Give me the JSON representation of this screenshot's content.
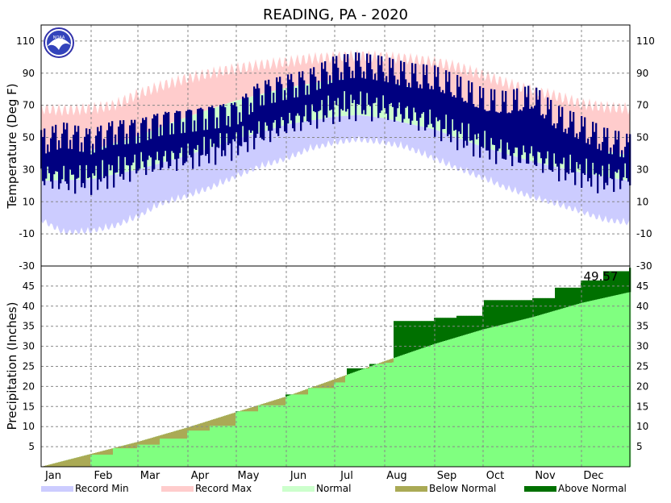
{
  "chart_data": [
    {
      "type": "area",
      "panel": "temperature",
      "title": "READING, PA - 2020",
      "ylabel": "Temperature (Deg F)",
      "ylim": [
        -30,
        120
      ],
      "yticks": [
        -10,
        10,
        30,
        50,
        70,
        90,
        110
      ],
      "grid": true,
      "logo": "noaa-logo",
      "series": [
        {
          "name": "Record Max",
          "color": "#ffcccc",
          "x": [
            1,
            15,
            32,
            46,
            61,
            75,
            92,
            106,
            122,
            136,
            153,
            167,
            183,
            197,
            214,
            228,
            245,
            259,
            275,
            289,
            306,
            320,
            336,
            350,
            366
          ],
          "values": [
            68,
            67,
            68,
            70,
            77,
            82,
            87,
            90,
            93,
            95,
            97,
            99,
            100,
            101,
            100,
            99,
            97,
            94,
            89,
            84,
            79,
            76,
            71,
            69,
            68
          ]
        },
        {
          "name": "Record Min",
          "color": "#ccccff",
          "x": [
            1,
            15,
            32,
            46,
            61,
            75,
            92,
            106,
            122,
            136,
            153,
            167,
            183,
            197,
            214,
            228,
            245,
            259,
            275,
            289,
            306,
            320,
            336,
            350,
            366
          ],
          "values": [
            2,
            -6,
            -5,
            -2,
            4,
            12,
            17,
            22,
            29,
            35,
            40,
            46,
            50,
            52,
            50,
            47,
            40,
            34,
            28,
            22,
            16,
            12,
            7,
            2,
            0
          ]
        },
        {
          "name": "Normal",
          "color": "#ccffcc",
          "x": [
            1,
            32,
            61,
            92,
            122,
            153,
            183,
            198,
            214,
            245,
            275,
            306,
            336,
            366
          ],
          "normal_high": [
            39,
            42,
            51,
            63,
            73,
            81,
            86,
            87,
            85,
            78,
            67,
            55,
            44,
            39
          ],
          "normal_low": [
            23,
            24,
            30,
            39,
            49,
            58,
            63,
            64,
            62,
            55,
            44,
            35,
            28,
            23
          ]
        },
        {
          "name": "Observed",
          "color": "#000080",
          "x": [
            1,
            15,
            32,
            46,
            61,
            75,
            92,
            106,
            122,
            136,
            153,
            167,
            183,
            197,
            214,
            228,
            245,
            259,
            275,
            289,
            306,
            320,
            336,
            350,
            366
          ],
          "high": [
            47,
            52,
            48,
            54,
            55,
            60,
            62,
            64,
            66,
            78,
            82,
            85,
            93,
            95,
            92,
            88,
            86,
            80,
            72,
            70,
            74,
            62,
            55,
            48,
            44
          ],
          "low": [
            26,
            24,
            24,
            28,
            33,
            35,
            38,
            42,
            46,
            52,
            58,
            63,
            68,
            70,
            68,
            64,
            58,
            52,
            45,
            40,
            38,
            32,
            28,
            24,
            26
          ]
        }
      ]
    },
    {
      "type": "area",
      "panel": "precipitation",
      "ylabel": "Precipitation (Inches)",
      "ylim": [
        0,
        50
      ],
      "yticks": [
        5,
        10,
        15,
        20,
        25,
        30,
        35,
        40,
        45
      ],
      "categories": [
        "Jan",
        "Feb",
        "Mar",
        "Apr",
        "May",
        "Jun",
        "Jul",
        "Aug",
        "Sep",
        "Oct",
        "Nov",
        "Dec"
      ],
      "grid": true,
      "annotation": "49.57",
      "series": [
        {
          "name": "Normal",
          "color": "#80ff80",
          "x": [
            1,
            32,
            61,
            92,
            122,
            153,
            183,
            214,
            245,
            275,
            306,
            336,
            366
          ],
          "values": [
            0,
            3.2,
            6.2,
            9.8,
            13.6,
            17.5,
            21.8,
            26.3,
            30.6,
            34.2,
            37.3,
            40.8,
            43.5
          ]
        },
        {
          "name": "Observed",
          "x": [
            1,
            32,
            46,
            61,
            75,
            92,
            106,
            122,
            136,
            153,
            167,
            183,
            190,
            191,
            205,
            214,
            219,
            220,
            245,
            259,
            275,
            276,
            306,
            320,
            336,
            350,
            366
          ],
          "values": [
            0,
            3.0,
            4.6,
            5.5,
            7.0,
            9.0,
            10.2,
            13.8,
            15.3,
            18.0,
            19.6,
            21.0,
            22.6,
            24.5,
            25.6,
            25.9,
            26.0,
            36.3,
            37.1,
            37.6,
            40.1,
            41.5,
            42.0,
            44.6,
            46.4,
            48.7,
            49.57
          ]
        },
        {
          "name": "Below Normal",
          "color": "#aaaa55"
        },
        {
          "name": "Above Normal",
          "color": "#007000"
        }
      ]
    }
  ],
  "legend": [
    {
      "label": "Record Min",
      "color": "#ccccff"
    },
    {
      "label": "Record Max",
      "color": "#ffcccc"
    },
    {
      "label": "Normal",
      "color": "#ccffcc"
    },
    {
      "label": "Below Normal",
      "color": "#aaaa55"
    },
    {
      "label": "Above Normal",
      "color": "#007000"
    }
  ]
}
